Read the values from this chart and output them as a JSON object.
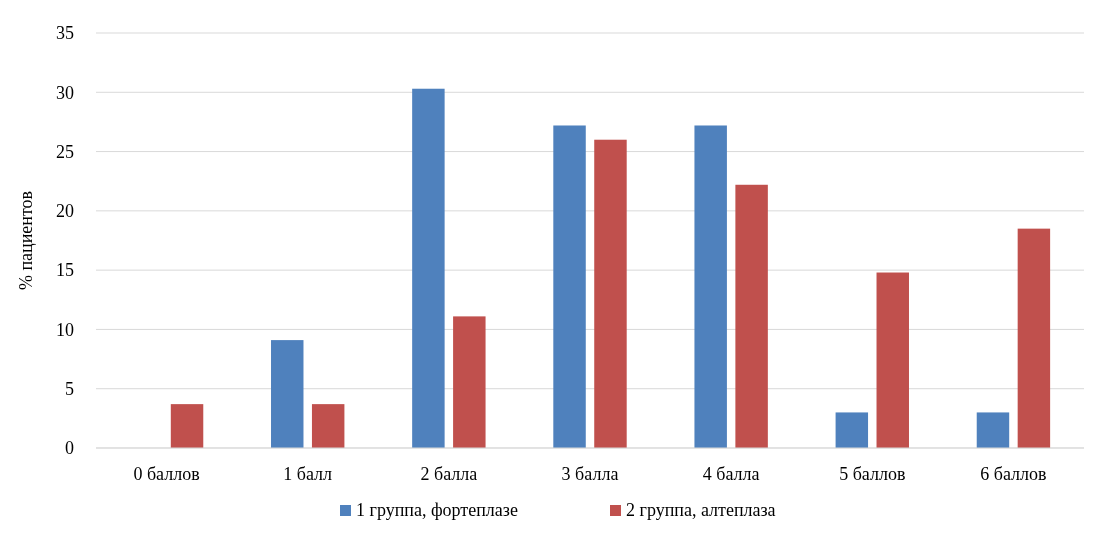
{
  "chart_data": {
    "type": "bar",
    "ylabel": "% пациентов",
    "categories": [
      "0 баллов",
      "1 балл",
      "2 балла",
      "3 балла",
      "4 балла",
      "5 баллов",
      "6 баллов"
    ],
    "series": [
      {
        "name": "1 группа, фортеплазе",
        "color": "#4f81bd",
        "values": [
          0,
          9.1,
          30.3,
          27.2,
          27.2,
          3.0,
          3.0
        ]
      },
      {
        "name": "2 группа, алтеплаза",
        "color": "#c0504d",
        "values": [
          3.7,
          3.7,
          11.1,
          26.0,
          22.2,
          14.8,
          18.5
        ]
      }
    ],
    "ylim": [
      0,
      35
    ],
    "yticks": [
      0,
      5,
      10,
      15,
      20,
      25,
      30,
      35
    ],
    "grid": "y",
    "legend": "bottom"
  }
}
